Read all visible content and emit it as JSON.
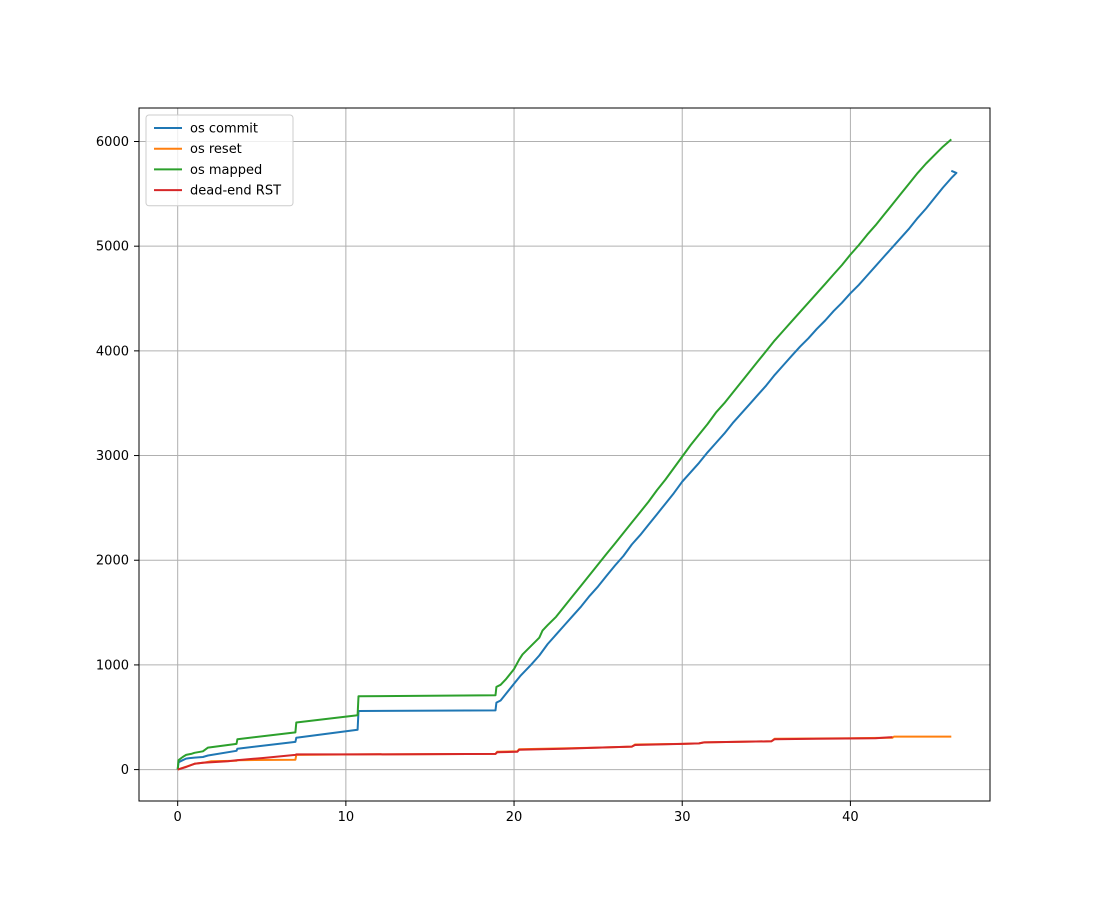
{
  "chart_data": {
    "type": "line",
    "title": "",
    "xlabel": "",
    "ylabel": "",
    "xlim": [
      -2.3,
      48.3
    ],
    "ylim": [
      -300,
      6320
    ],
    "xticks": [
      0,
      10,
      20,
      30,
      40
    ],
    "yticks": [
      0,
      1000,
      2000,
      3000,
      4000,
      5000,
      6000
    ],
    "grid": true,
    "legend_position": "top-left",
    "series": [
      {
        "name": "os commit",
        "color": "#1f77b4",
        "points": [
          [
            0.0,
            0
          ],
          [
            0.05,
            70
          ],
          [
            0.3,
            90
          ],
          [
            0.5,
            105
          ],
          [
            0.7,
            110
          ],
          [
            1.0,
            115
          ],
          [
            1.5,
            120
          ],
          [
            1.8,
            135
          ],
          [
            3.5,
            180
          ],
          [
            3.55,
            200
          ],
          [
            7.0,
            265
          ],
          [
            7.05,
            305
          ],
          [
            10.7,
            380
          ],
          [
            10.75,
            560
          ],
          [
            18.9,
            565
          ],
          [
            18.95,
            640
          ],
          [
            19.2,
            660
          ],
          [
            19.5,
            720
          ],
          [
            20.0,
            820
          ],
          [
            20.4,
            900
          ],
          [
            21.0,
            1000
          ],
          [
            21.5,
            1090
          ],
          [
            22.0,
            1200
          ],
          [
            22.5,
            1290
          ],
          [
            23.0,
            1380
          ],
          [
            23.5,
            1470
          ],
          [
            24.0,
            1560
          ],
          [
            24.5,
            1660
          ],
          [
            25.0,
            1750
          ],
          [
            25.5,
            1850
          ],
          [
            26.0,
            1950
          ],
          [
            26.5,
            2040
          ],
          [
            27.0,
            2150
          ],
          [
            27.5,
            2240
          ],
          [
            28.0,
            2340
          ],
          [
            28.5,
            2440
          ],
          [
            29.0,
            2540
          ],
          [
            29.5,
            2640
          ],
          [
            30.0,
            2750
          ],
          [
            30.5,
            2840
          ],
          [
            31.0,
            2930
          ],
          [
            31.5,
            3030
          ],
          [
            32.0,
            3120
          ],
          [
            32.5,
            3210
          ],
          [
            33.0,
            3310
          ],
          [
            33.5,
            3400
          ],
          [
            34.0,
            3490
          ],
          [
            34.5,
            3580
          ],
          [
            35.0,
            3670
          ],
          [
            35.5,
            3770
          ],
          [
            36.0,
            3860
          ],
          [
            36.5,
            3950
          ],
          [
            37.0,
            4040
          ],
          [
            37.5,
            4120
          ],
          [
            38.0,
            4210
          ],
          [
            38.5,
            4290
          ],
          [
            39.0,
            4380
          ],
          [
            39.5,
            4460
          ],
          [
            40.0,
            4550
          ],
          [
            40.5,
            4630
          ],
          [
            41.0,
            4720
          ],
          [
            41.5,
            4810
          ],
          [
            42.0,
            4900
          ],
          [
            42.5,
            4990
          ],
          [
            43.0,
            5080
          ],
          [
            43.5,
            5170
          ],
          [
            44.0,
            5270
          ],
          [
            44.5,
            5360
          ],
          [
            45.0,
            5460
          ],
          [
            45.5,
            5560
          ],
          [
            46.0,
            5650
          ],
          [
            46.3,
            5700
          ],
          [
            46.0,
            5720
          ]
        ]
      },
      {
        "name": "os reset",
        "color": "#ff7f0e",
        "points": [
          [
            0.0,
            0
          ],
          [
            1.0,
            55
          ],
          [
            1.5,
            65
          ],
          [
            2.0,
            80
          ],
          [
            3.5,
            85
          ],
          [
            3.55,
            90
          ],
          [
            7.0,
            95
          ],
          [
            7.05,
            140
          ],
          [
            10.7,
            145
          ],
          [
            18.9,
            150
          ],
          [
            19.0,
            170
          ],
          [
            20.2,
            175
          ],
          [
            20.3,
            195
          ],
          [
            25.0,
            210
          ],
          [
            27.0,
            220
          ],
          [
            27.2,
            240
          ],
          [
            30.0,
            245
          ],
          [
            31.0,
            250
          ],
          [
            31.3,
            260
          ],
          [
            35.3,
            270
          ],
          [
            35.5,
            295
          ],
          [
            40.0,
            300
          ],
          [
            42.5,
            305
          ],
          [
            42.6,
            315
          ],
          [
            46.0,
            315
          ]
        ]
      },
      {
        "name": "os mapped",
        "color": "#2ca02c",
        "points": [
          [
            0.0,
            0
          ],
          [
            0.05,
            90
          ],
          [
            0.3,
            120
          ],
          [
            0.5,
            140
          ],
          [
            0.8,
            150
          ],
          [
            1.0,
            160
          ],
          [
            1.5,
            175
          ],
          [
            1.8,
            210
          ],
          [
            3.5,
            245
          ],
          [
            3.55,
            290
          ],
          [
            7.0,
            355
          ],
          [
            7.05,
            450
          ],
          [
            10.7,
            520
          ],
          [
            10.75,
            700
          ],
          [
            18.9,
            710
          ],
          [
            18.95,
            790
          ],
          [
            19.2,
            810
          ],
          [
            19.5,
            860
          ],
          [
            20.0,
            960
          ],
          [
            20.3,
            1050
          ],
          [
            20.5,
            1100
          ],
          [
            21.0,
            1180
          ],
          [
            21.5,
            1260
          ],
          [
            21.7,
            1330
          ],
          [
            22.0,
            1380
          ],
          [
            22.5,
            1460
          ],
          [
            23.0,
            1560
          ],
          [
            23.5,
            1660
          ],
          [
            24.0,
            1760
          ],
          [
            24.5,
            1860
          ],
          [
            25.0,
            1960
          ],
          [
            25.5,
            2060
          ],
          [
            26.0,
            2160
          ],
          [
            26.5,
            2260
          ],
          [
            27.0,
            2360
          ],
          [
            27.5,
            2460
          ],
          [
            28.0,
            2560
          ],
          [
            28.5,
            2670
          ],
          [
            29.0,
            2770
          ],
          [
            29.5,
            2880
          ],
          [
            30.0,
            2990
          ],
          [
            30.5,
            3100
          ],
          [
            31.0,
            3200
          ],
          [
            31.5,
            3300
          ],
          [
            32.0,
            3410
          ],
          [
            32.5,
            3500
          ],
          [
            33.0,
            3600
          ],
          [
            33.5,
            3700
          ],
          [
            34.0,
            3800
          ],
          [
            34.5,
            3900
          ],
          [
            35.0,
            4000
          ],
          [
            35.5,
            4100
          ],
          [
            36.0,
            4190
          ],
          [
            36.5,
            4280
          ],
          [
            37.0,
            4370
          ],
          [
            37.5,
            4460
          ],
          [
            38.0,
            4550
          ],
          [
            38.5,
            4640
          ],
          [
            39.0,
            4730
          ],
          [
            39.5,
            4820
          ],
          [
            40.0,
            4920
          ],
          [
            40.5,
            5010
          ],
          [
            41.0,
            5110
          ],
          [
            41.5,
            5200
          ],
          [
            42.0,
            5300
          ],
          [
            42.5,
            5400
          ],
          [
            43.0,
            5500
          ],
          [
            43.5,
            5600
          ],
          [
            44.0,
            5700
          ],
          [
            44.5,
            5790
          ],
          [
            45.0,
            5870
          ],
          [
            45.5,
            5950
          ],
          [
            46.0,
            6020
          ]
        ]
      },
      {
        "name": "dead-end RST",
        "color": "#d62728",
        "points": [
          [
            0.0,
            0
          ],
          [
            0.5,
            25
          ],
          [
            1.0,
            55
          ],
          [
            1.5,
            65
          ],
          [
            2.0,
            70
          ],
          [
            3.0,
            80
          ],
          [
            3.5,
            90
          ],
          [
            5.0,
            110
          ],
          [
            7.0,
            140
          ],
          [
            7.05,
            145
          ],
          [
            10.7,
            145
          ],
          [
            18.9,
            150
          ],
          [
            19.0,
            165
          ],
          [
            20.2,
            170
          ],
          [
            20.3,
            190
          ],
          [
            23.0,
            200
          ],
          [
            25.0,
            210
          ],
          [
            27.0,
            220
          ],
          [
            27.2,
            235
          ],
          [
            30.0,
            245
          ],
          [
            31.0,
            250
          ],
          [
            31.3,
            260
          ],
          [
            35.3,
            270
          ],
          [
            35.5,
            290
          ],
          [
            38.0,
            295
          ],
          [
            41.5,
            300
          ],
          [
            42.5,
            310
          ]
        ]
      }
    ]
  }
}
